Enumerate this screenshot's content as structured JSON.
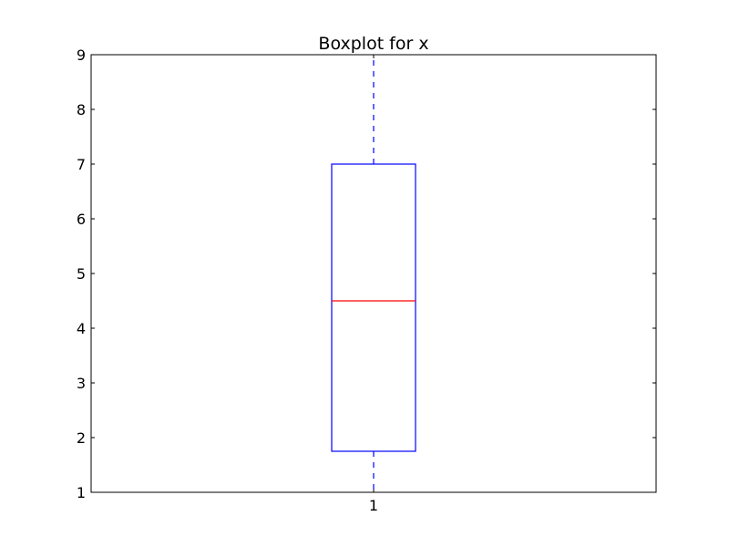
{
  "chart_data": {
    "type": "box",
    "title": "Boxplot for x",
    "xlabel": "",
    "ylabel": "",
    "categories": [
      "1"
    ],
    "boxes": [
      {
        "category": "1",
        "whisker_low": 1,
        "q1": 1.75,
        "median": 4.5,
        "q3": 7,
        "whisker_high": 9
      }
    ],
    "ylim": [
      1,
      9
    ],
    "yticks": [
      1,
      2,
      3,
      4,
      5,
      6,
      7,
      8,
      9
    ],
    "grid": false,
    "colors": {
      "box": "#0000ff",
      "median": "#ff0000",
      "axis": "#000000"
    }
  }
}
